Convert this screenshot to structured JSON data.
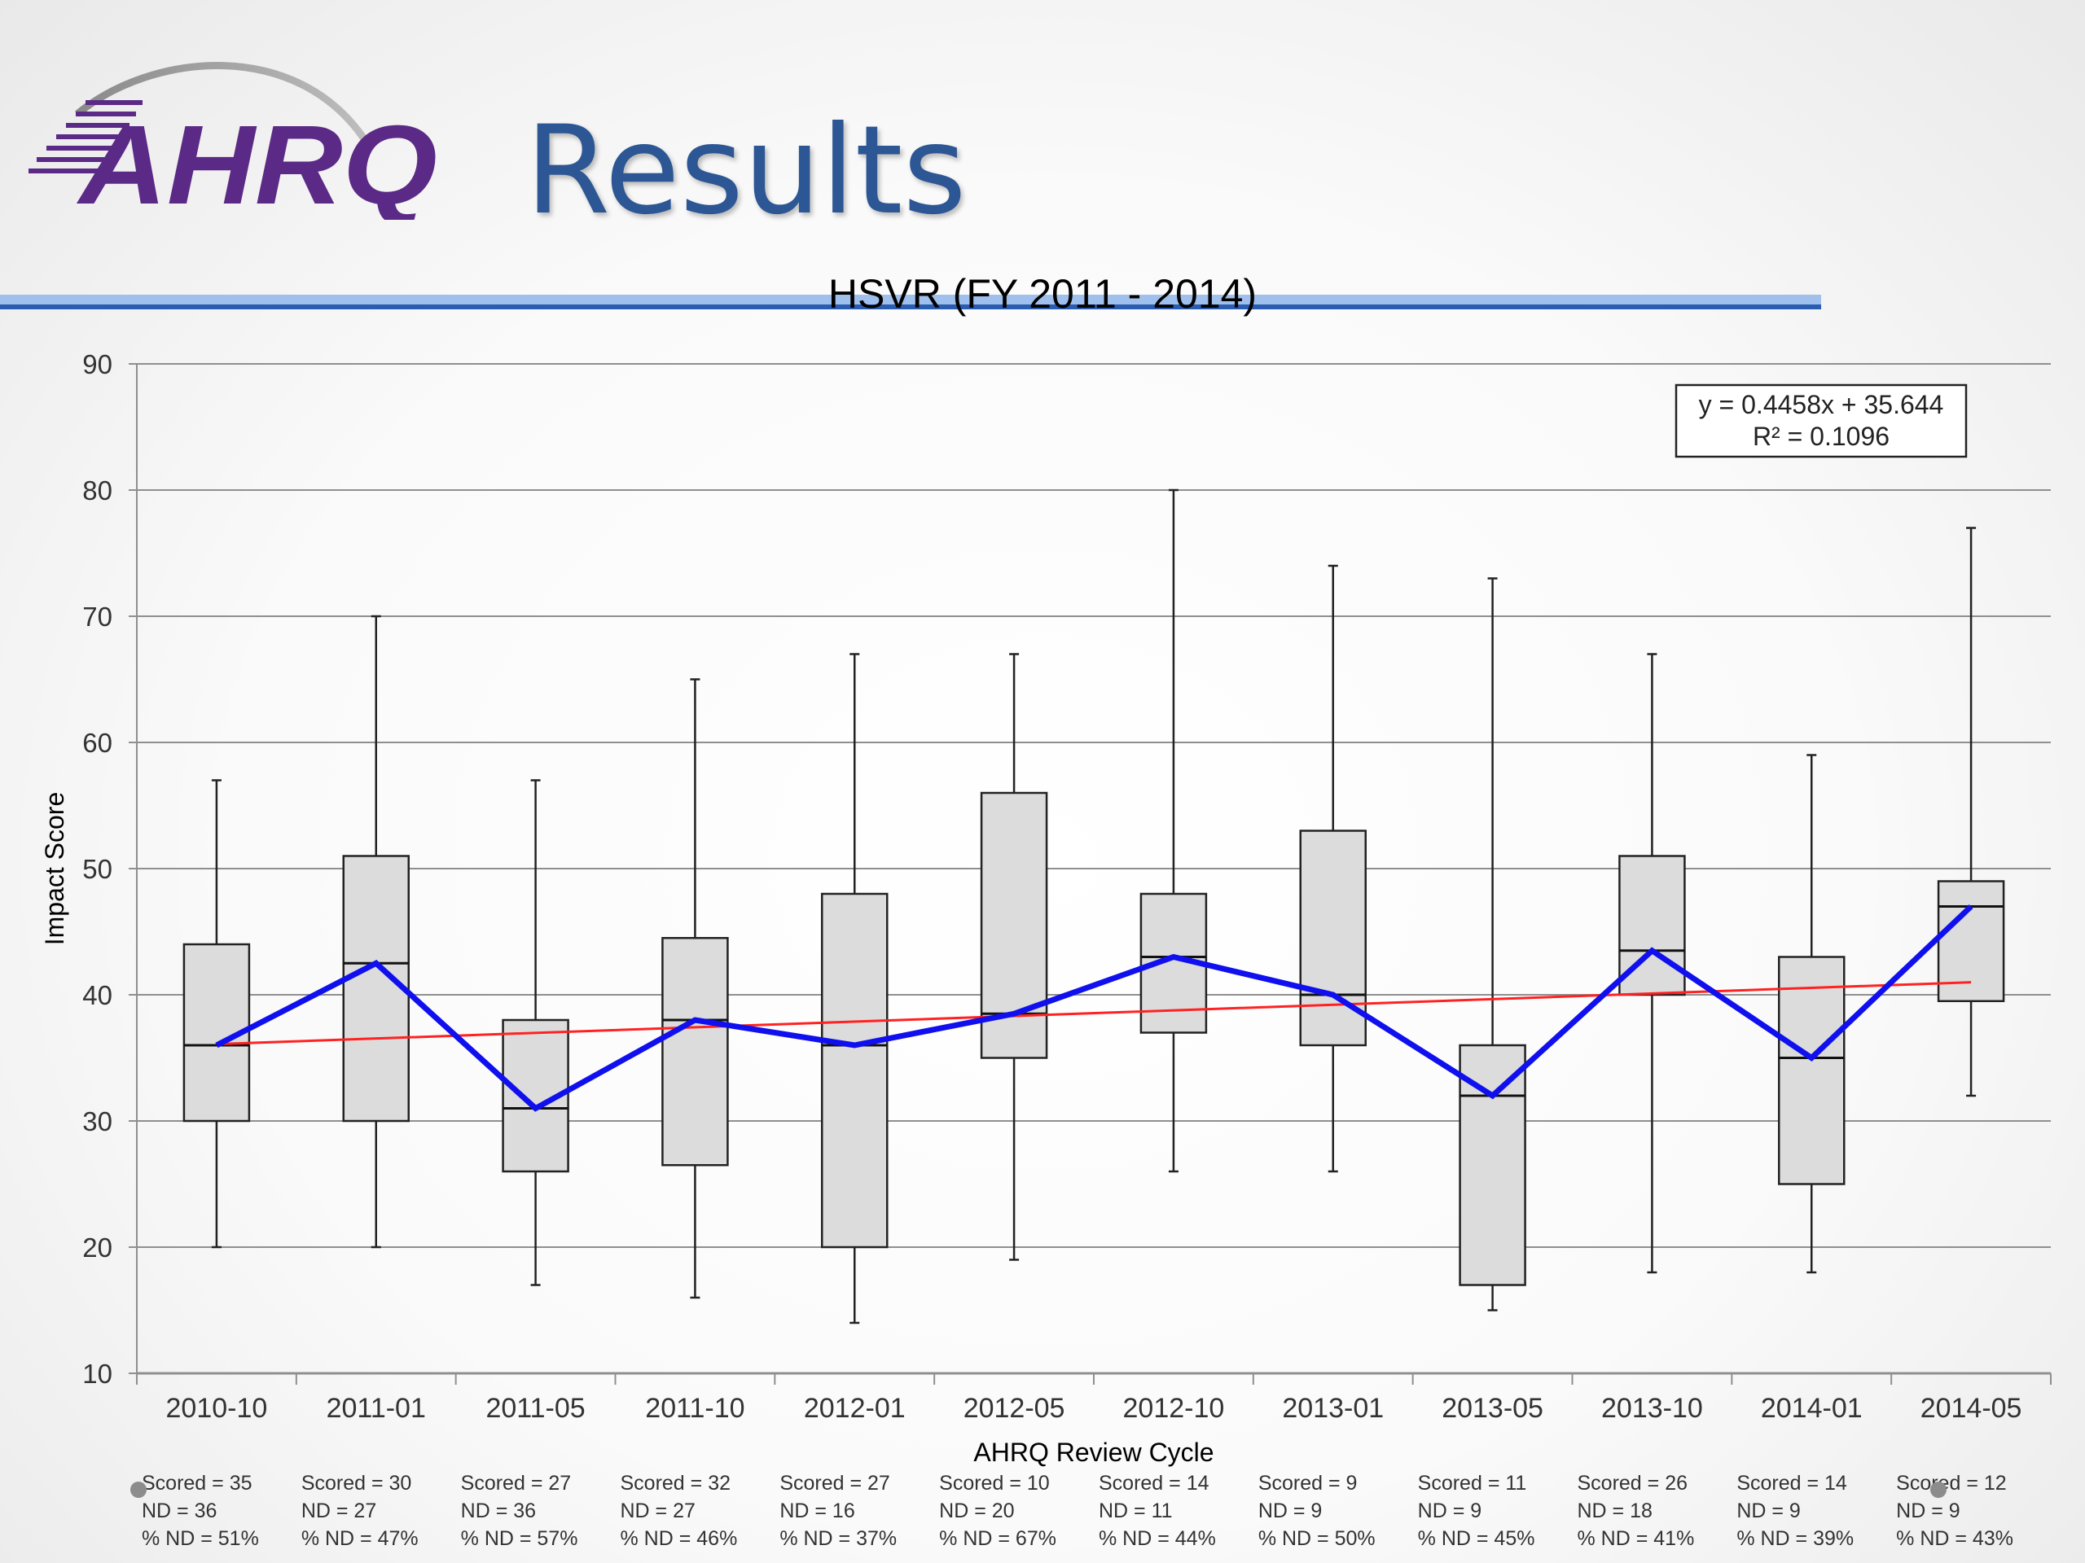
{
  "slide": {
    "logo_text": "AHRQ",
    "title": "Results",
    "title_color": "#2c5694",
    "logo_color": "#5b2a86",
    "rule_color": "#3a6fc4"
  },
  "chart_data": {
    "type": "box",
    "title": "HSVR (FY 2011 - 2014)",
    "xlabel": "AHRQ Review Cycle",
    "ylabel": "Impact Score",
    "ylim": [
      10,
      90
    ],
    "yticks": [
      10,
      20,
      30,
      40,
      50,
      60,
      70,
      80,
      90
    ],
    "grid": true,
    "categories": [
      "2010-10",
      "2011-01",
      "2011-05",
      "2011-10",
      "2012-01",
      "2012-05",
      "2012-10",
      "2013-01",
      "2013-05",
      "2013-10",
      "2014-01",
      "2014-05"
    ],
    "boxes": [
      {
        "min": 20,
        "q1": 30,
        "median": 36,
        "q3": 44,
        "max": 57
      },
      {
        "min": 20,
        "q1": 30,
        "median": 42.5,
        "q3": 51,
        "max": 70
      },
      {
        "min": 17,
        "q1": 26,
        "median": 31,
        "q3": 38,
        "max": 57
      },
      {
        "min": 16,
        "q1": 26.5,
        "median": 38,
        "q3": 44.5,
        "max": 65
      },
      {
        "min": 14,
        "q1": 20,
        "median": 36,
        "q3": 48,
        "max": 67
      },
      {
        "min": 19,
        "q1": 35,
        "median": 38.5,
        "q3": 56,
        "max": 67
      },
      {
        "min": 26,
        "q1": 37,
        "median": 43,
        "q3": 48,
        "max": 80
      },
      {
        "min": 26,
        "q1": 36,
        "median": 40,
        "q3": 53,
        "max": 74
      },
      {
        "min": 15,
        "q1": 17,
        "median": 32,
        "q3": 36,
        "max": 73
      },
      {
        "min": 18,
        "q1": 40,
        "median": 43.5,
        "q3": 51,
        "max": 67
      },
      {
        "min": 18,
        "q1": 25,
        "median": 35,
        "q3": 43,
        "max": 59
      },
      {
        "min": 32,
        "q1": 39.5,
        "median": 47,
        "q3": 49,
        "max": 77
      }
    ],
    "median_line": {
      "color": "#1010ee",
      "values": [
        36,
        42.5,
        31,
        38,
        36,
        38.5,
        43,
        40,
        32,
        43.5,
        35,
        47
      ]
    },
    "trendline": {
      "color": "#ff2222",
      "slope": 0.4458,
      "intercept": 35.644,
      "equation": "y = 0.4458x + 35.644",
      "r2": "R² = 0.1096"
    },
    "box_fill": "#dcdcdc",
    "footer": [
      {
        "scored": "Scored = 35",
        "nd": "ND = 36",
        "pct": "% ND = 51%"
      },
      {
        "scored": "Scored = 30",
        "nd": "ND = 27",
        "pct": "% ND = 47%"
      },
      {
        "scored": "Scored = 27",
        "nd": "ND = 36",
        "pct": "% ND = 57%"
      },
      {
        "scored": "Scored = 32",
        "nd": "ND = 27",
        "pct": "% ND = 46%"
      },
      {
        "scored": "Scored = 27",
        "nd": "ND = 16",
        "pct": "% ND = 37%"
      },
      {
        "scored": "Scored = 10",
        "nd": "ND = 20",
        "pct": "% ND = 67%"
      },
      {
        "scored": "Scored = 14",
        "nd": "ND = 11",
        "pct": "% ND = 44%"
      },
      {
        "scored": "Scored = 9",
        "nd": "ND = 9",
        "pct": "% ND = 50%"
      },
      {
        "scored": "Scored = 11",
        "nd": "ND = 9",
        "pct": "% ND = 45%"
      },
      {
        "scored": "Scored = 26",
        "nd": "ND = 18",
        "pct": "% ND = 41%"
      },
      {
        "scored": "Scored = 14",
        "nd": "ND = 9",
        "pct": "% ND = 39%"
      },
      {
        "scored": "Scored = 12",
        "nd": "ND = 9",
        "pct": "% ND = 43%"
      }
    ]
  }
}
